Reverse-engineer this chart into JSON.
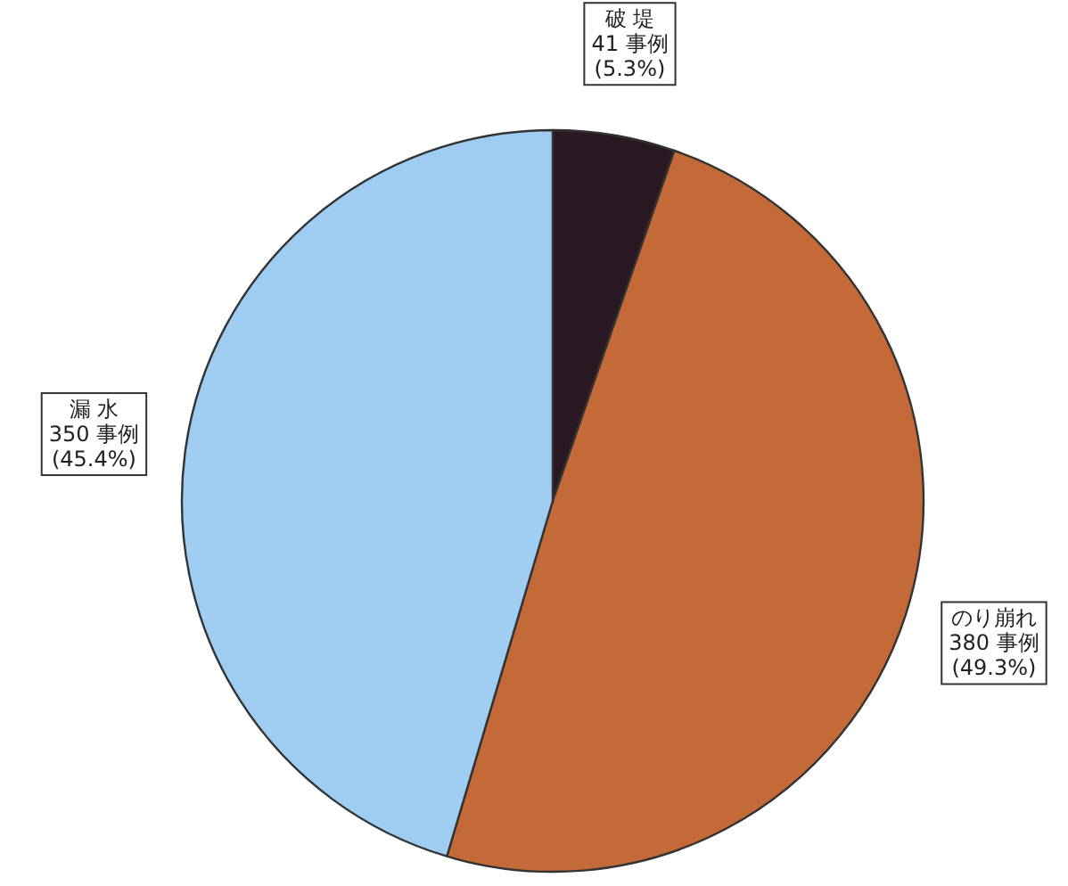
{
  "chart_data": {
    "type": "pie",
    "categories": [
      "破 堤",
      "のり崩れ",
      "漏 水"
    ],
    "values": [
      41,
      380,
      350
    ],
    "value_labels": [
      "41 事例\n(5.3%)",
      "380 事例\n(49.3%)",
      "350 事例\n(45.4%)"
    ],
    "colors": [
      "#2a1822",
      "#c46a38",
      "#9fcdf2"
    ]
  }
}
